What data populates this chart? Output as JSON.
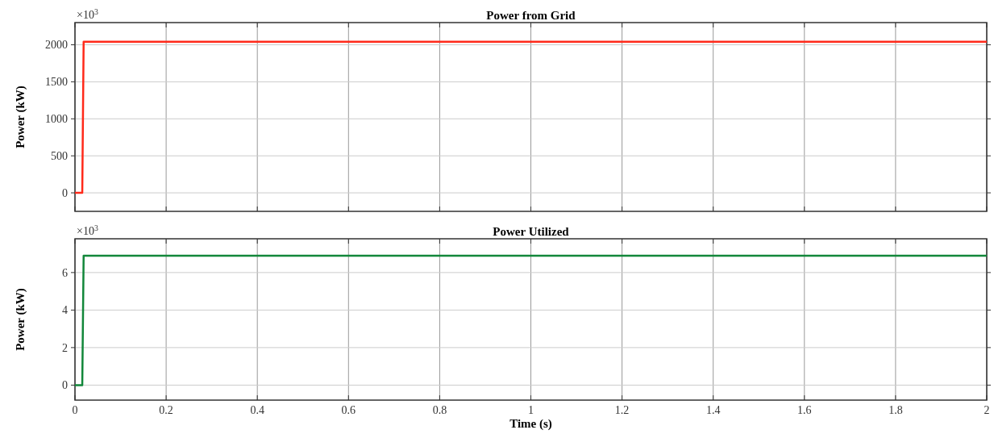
{
  "chart_data": [
    {
      "type": "line",
      "title": "Power from Grid",
      "ylabel": "Power (kW)",
      "annotations": [
        "×10$^{3}$"
      ],
      "series": [
        {
          "color": "#ff2a1a",
          "x": [
            0,
            0.016,
            0.019,
            2
          ],
          "values": [
            0,
            0,
            2040,
            2040
          ]
        }
      ],
      "xlim": [
        0,
        2
      ],
      "xticks": [
        0,
        0.2,
        0.4,
        0.6,
        0.8,
        1,
        1.2,
        1.4,
        1.6,
        1.8,
        2
      ],
      "ylim": [
        -250,
        2300
      ],
      "yticks": [
        0,
        500,
        1000,
        1500,
        2000
      ],
      "grid": true,
      "tick_labels": "y"
    },
    {
      "type": "line",
      "title": "Power Utilized",
      "ylabel": "Power (kW)",
      "xlabel": "Time (s)",
      "annotations": [
        "×10$^{3}$"
      ],
      "series": [
        {
          "color": "#12873a",
          "x": [
            0,
            0.016,
            0.019,
            2
          ],
          "values": [
            0,
            0,
            6.9,
            6.9
          ]
        }
      ],
      "xlim": [
        0,
        2
      ],
      "xticks": [
        0,
        0.2,
        0.4,
        0.6,
        0.8,
        1,
        1.2,
        1.4,
        1.6,
        1.8,
        2
      ],
      "ylim": [
        -0.8,
        7.8
      ],
      "yticks": [
        0,
        2,
        4,
        6
      ],
      "grid": true
    }
  ]
}
